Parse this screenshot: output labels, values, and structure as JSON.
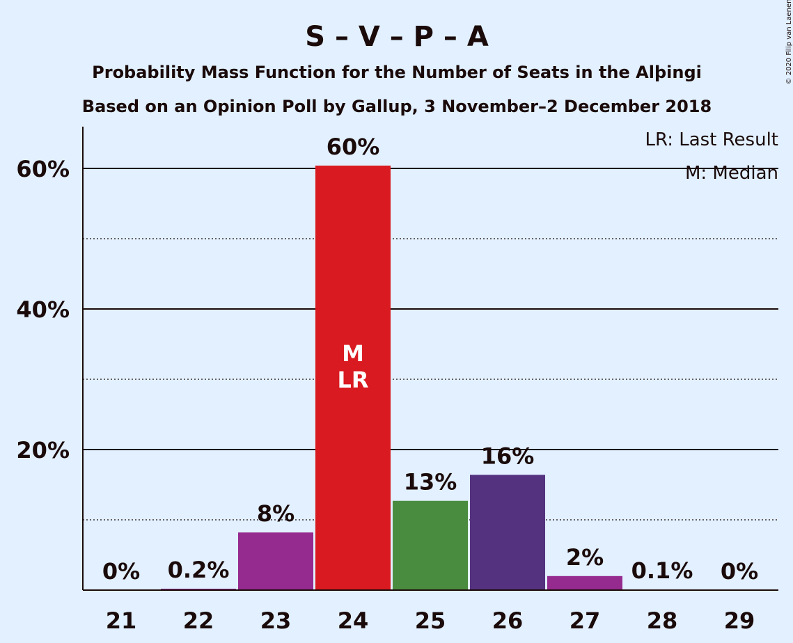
{
  "header": {
    "title": "S – V – P – A",
    "subtitle_1": "Probability Mass Function for the Number of Seats in the Alþingi",
    "subtitle_2": "Based on an Opinion Poll by Gallup, 3 November–2 December 2018"
  },
  "legend": {
    "last_result": "LR: Last Result",
    "median": "M: Median"
  },
  "copyright": "© 2020 Filip van Laenen",
  "colors": {
    "background": "#e2f0ff",
    "text": "#1a0a0a"
  },
  "chart_data": {
    "type": "bar",
    "categories": [
      "21",
      "22",
      "23",
      "24",
      "25",
      "26",
      "27",
      "28",
      "29"
    ],
    "values": [
      0,
      0.2,
      8.2,
      60.4,
      12.7,
      16.4,
      2.0,
      0.1,
      0
    ],
    "value_labels": [
      "0%",
      "0.2%",
      "8%",
      "60%",
      "13%",
      "16%",
      "2%",
      "0.1%",
      "0%"
    ],
    "bar_colors": [
      "#952a8f",
      "#952a8f",
      "#952a8f",
      "#d91a20",
      "#4a8c3f",
      "#54327f",
      "#952a8f",
      "#952a8f",
      "#952a8f"
    ],
    "ylim": [
      0,
      65.6
    ],
    "yticks": [
      20,
      40,
      60
    ],
    "ytick_labels": [
      "20%",
      "40%",
      "60%"
    ],
    "minor_gridlines": [
      10,
      30,
      50
    ],
    "annotations": [
      {
        "category": "24",
        "lines": [
          "M",
          "LR"
        ]
      }
    ],
    "xlabel": "",
    "ylabel": ""
  }
}
